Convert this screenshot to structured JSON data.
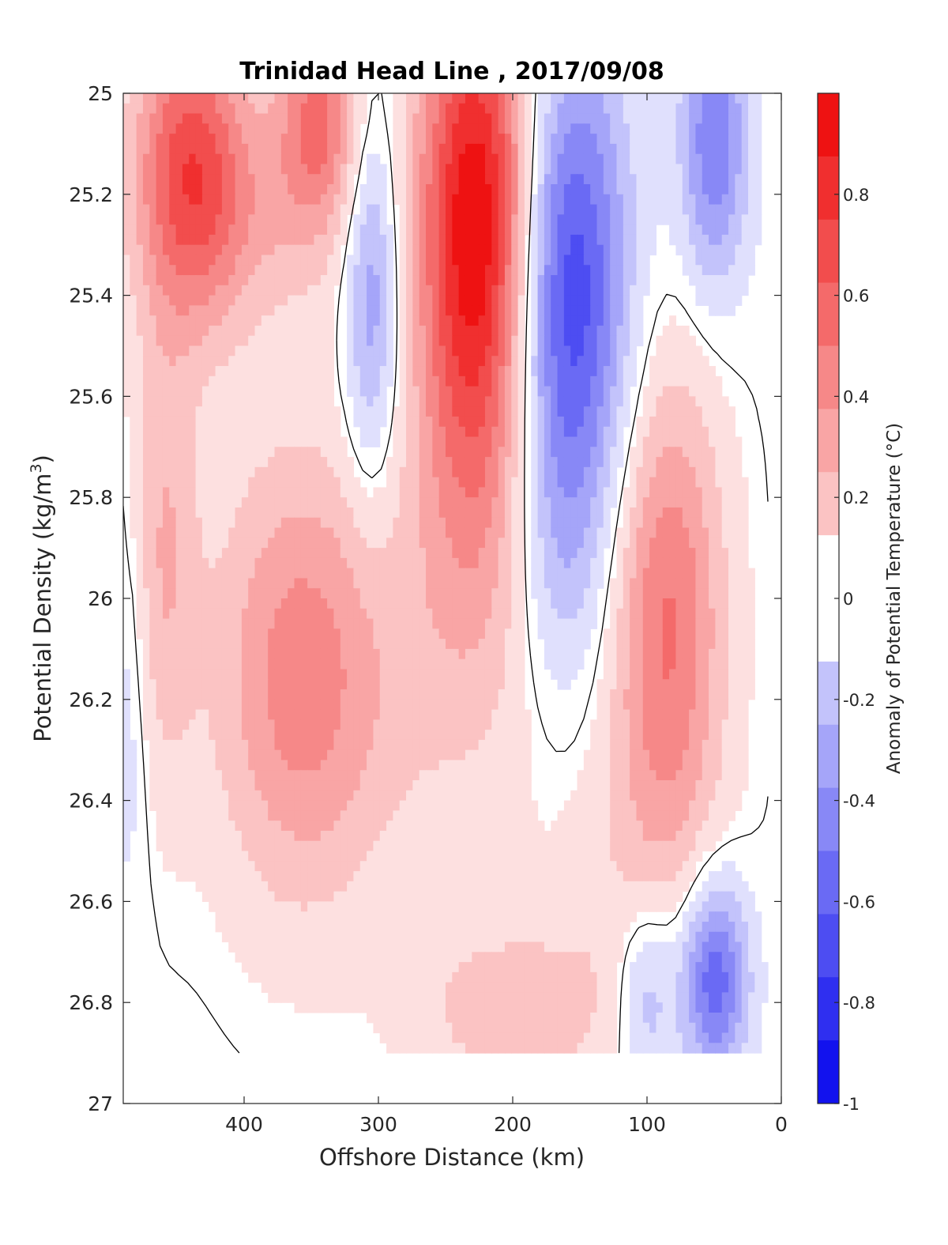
{
  "chart_data": {
    "type": "heatmap",
    "title": "Trinidad Head Line , 2017/09/08",
    "xlabel": "Offshore Distance (km)",
    "ylabel_prefix": "Potential Density (kg/m",
    "ylabel_sup": "3",
    "ylabel_suffix": ")",
    "xlim": [
      490,
      0
    ],
    "ylim": [
      25,
      27
    ],
    "x_ticks": [
      "400",
      "300",
      "200",
      "100",
      "0"
    ],
    "y_ticks": [
      "25",
      "25.2",
      "25.4",
      "25.6",
      "25.8",
      "26",
      "26.2",
      "26.4",
      "26.6",
      "26.8",
      "27"
    ],
    "x_tick_values": [
      400,
      300,
      200,
      100,
      0
    ],
    "y_tick_values": [
      25,
      25.2,
      25.4,
      25.6,
      25.8,
      26,
      26.2,
      26.4,
      26.6,
      26.8,
      27
    ],
    "colorbar": {
      "label": "Anomaly of Potential Temperature (°C)",
      "range": [
        -1,
        1
      ],
      "ticks": [
        "0.8",
        "0.6",
        "0.4",
        "0.2",
        "0",
        "-0.2",
        "-0.4",
        "-0.6",
        "-0.8",
        "-1"
      ],
      "tick_values": [
        0.8,
        0.6,
        0.4,
        0.2,
        0,
        -0.2,
        -0.4,
        -0.6,
        -0.8,
        -1
      ],
      "levels": 16,
      "colors_warm": [
        "#ffffff",
        "#fde0e0",
        "#fbc3c3",
        "#f9a5a5",
        "#f68888",
        "#f46a6a",
        "#f24d4d",
        "#f02f2f",
        "#ee1212",
        "#ff0000"
      ],
      "colors_cool": [
        "#ffffff",
        "#e0e0fd",
        "#c3c3fb",
        "#a5a5f9",
        "#8888f6",
        "#6a6af4",
        "#4d4df2",
        "#2f2ff0",
        "#1212ee",
        "#0000ff"
      ]
    },
    "data_bottom_density": 26.9,
    "anomaly_features": [
      {
        "x": 440,
        "y": 25.15,
        "sx": 30,
        "sy": 0.22,
        "a": 0.75
      },
      {
        "x": 345,
        "y": 25.05,
        "sx": 22,
        "sy": 0.15,
        "a": 0.55
      },
      {
        "x": 380,
        "y": 25.25,
        "sx": 45,
        "sy": 0.16,
        "a": 0.2
      },
      {
        "x": 460,
        "y": 25.9,
        "sx": 18,
        "sy": 0.32,
        "a": 0.3
      },
      {
        "x": 360,
        "y": 26.15,
        "sx": 45,
        "sy": 0.32,
        "a": 0.48
      },
      {
        "x": 305,
        "y": 25.4,
        "sx": 14,
        "sy": 0.25,
        "a": -0.45
      },
      {
        "x": 225,
        "y": 25.25,
        "sx": 32,
        "sy": 0.35,
        "a": 1.1
      },
      {
        "x": 225,
        "y": 25.85,
        "sx": 35,
        "sy": 0.3,
        "a": 0.25
      },
      {
        "x": 160,
        "y": 25.4,
        "sx": 32,
        "sy": 0.35,
        "a": -0.85
      },
      {
        "x": 165,
        "y": 25.95,
        "sx": 25,
        "sy": 0.2,
        "a": -0.15
      },
      {
        "x": 50,
        "y": 25.1,
        "sx": 18,
        "sy": 0.2,
        "a": -0.55
      },
      {
        "x": 85,
        "y": 26.05,
        "sx": 30,
        "sy": 0.35,
        "a": 0.58
      },
      {
        "x": 110,
        "y": 26.6,
        "sx": 45,
        "sy": 0.22,
        "a": 0.12
      },
      {
        "x": 50,
        "y": 26.75,
        "sx": 18,
        "sy": 0.14,
        "a": -0.7
      },
      {
        "x": 100,
        "y": 26.78,
        "sx": 16,
        "sy": 0.14,
        "a": -0.35
      },
      {
        "x": 200,
        "y": 26.82,
        "sx": 50,
        "sy": 0.12,
        "a": 0.28
      },
      {
        "x": 270,
        "y": 26.2,
        "sx": 60,
        "sy": 0.3,
        "a": 0.12
      },
      {
        "x": 485,
        "y": 26.2,
        "sx": 10,
        "sy": 0.3,
        "a": -0.15
      }
    ]
  }
}
